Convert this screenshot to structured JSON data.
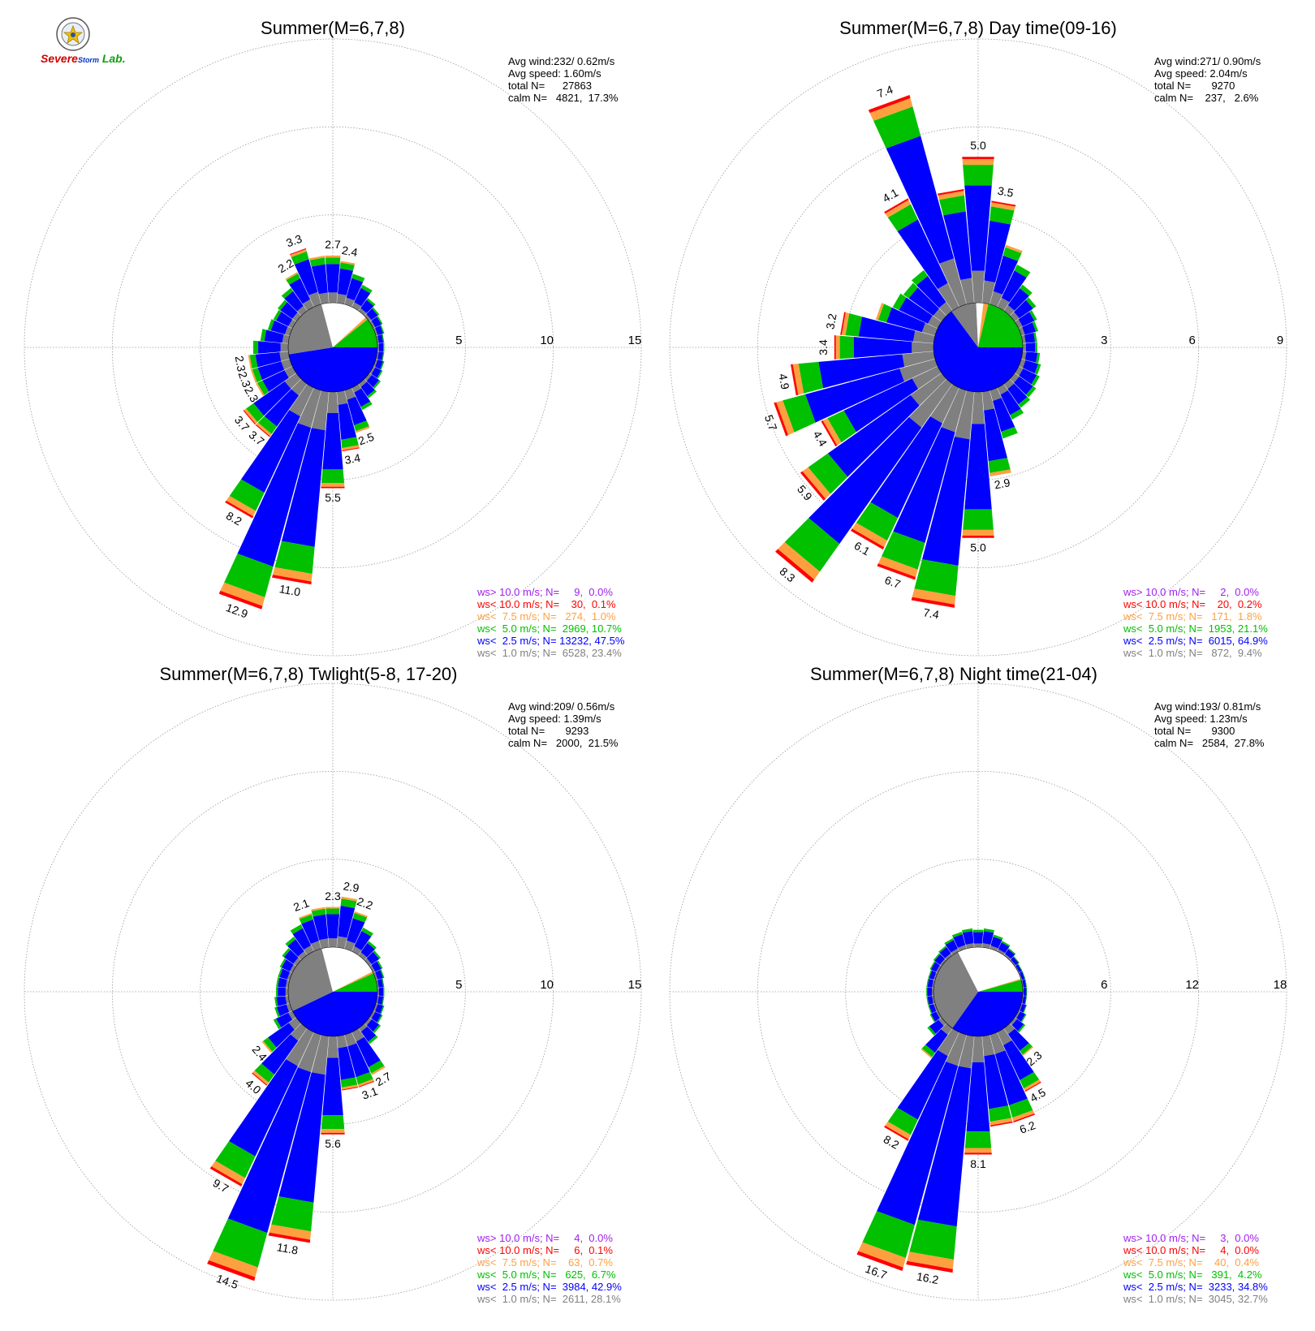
{
  "logo": {
    "part1": "Severe",
    "part2": "Storm",
    "part3": "Lab."
  },
  "colors": {
    "gt10": "#a020f0",
    "lt10": "#ff0000",
    "lt75": "#ffa040",
    "lt5": "#00c000",
    "lt25": "#0000ff",
    "lt1": "#808080",
    "calm_fill": "#ffffff",
    "grid": "#999999"
  },
  "chart_data": [
    {
      "type": "polar-bar",
      "title": "Summer(M=6,7,8)",
      "rings": [
        5,
        10,
        15
      ],
      "rmax": 15,
      "stats": [
        "Avg wind:232/ 0.62m/s",
        "Avg speed: 1.60m/s",
        "total N=      27863",
        "calm N=   4821,  17.3%"
      ],
      "legend": [
        {
          "label": "ws> 10.0 m/s; N=     9,  0.0%",
          "cls": "gt10"
        },
        {
          "label": "ws< 10.0 m/s; N=    30,  0.1%",
          "cls": "lt10"
        },
        {
          "label": "ws<  7.5 m/s; N=   274,  1.0%",
          "cls": "lt75"
        },
        {
          "label": "ws<  5.0 m/s; N=  2969, 10.7%",
          "cls": "lt5"
        },
        {
          "label": "ws<  2.5 m/s; N= 13232, 47.5%",
          "cls": "lt25"
        },
        {
          "label": "ws<  1.0 m/s; N=  6528, 23.4%",
          "cls": "lt1"
        }
      ],
      "pie": [
        {
          "cls": "lt25",
          "percent": 47.5
        },
        {
          "cls": "lt1",
          "percent": 23.4
        },
        {
          "cls": "calm_fill",
          "percent": 17.3
        },
        {
          "cls": "lt75",
          "percent": 1.0
        },
        {
          "cls": "lt5",
          "percent": 10.8
        }
      ],
      "bars": [
        {
          "dir": 0,
          "total": 2.7,
          "label": "2.7"
        },
        {
          "dir": 10,
          "total": 2.4,
          "label": "2.4"
        },
        {
          "dir": 20,
          "total": 1.8
        },
        {
          "dir": 30,
          "total": 1.4
        },
        {
          "dir": 40,
          "total": 0.9
        },
        {
          "dir": 50,
          "total": 0.7
        },
        {
          "dir": 60,
          "total": 0.6
        },
        {
          "dir": 70,
          "total": 0.5
        },
        {
          "dir": 80,
          "total": 0.4
        },
        {
          "dir": 90,
          "total": 0.4
        },
        {
          "dir": 100,
          "total": 0.4
        },
        {
          "dir": 110,
          "total": 0.5
        },
        {
          "dir": 120,
          "total": 0.6
        },
        {
          "dir": 130,
          "total": 0.8
        },
        {
          "dir": 140,
          "total": 1.0
        },
        {
          "dir": 150,
          "total": 1.4
        },
        {
          "dir": 160,
          "total": 2.5,
          "label": "2.5"
        },
        {
          "dir": 170,
          "total": 3.4,
          "label": "3.4"
        },
        {
          "dir": 180,
          "total": 5.5,
          "label": "5.5"
        },
        {
          "dir": 190,
          "total": 11.0,
          "label": "11.0"
        },
        {
          "dir": 200,
          "total": 12.9,
          "label": "12.9"
        },
        {
          "dir": 210,
          "total": 8.2,
          "label": "8.2"
        },
        {
          "dir": 220,
          "total": 3.7,
          "label": "3.7"
        },
        {
          "dir": 230,
          "total": 3.7,
          "label": "3.7"
        },
        {
          "dir": 240,
          "total": 2.3,
          "label": "2.3"
        },
        {
          "dir": 250,
          "total": 2.3,
          "label": "2.3"
        },
        {
          "dir": 260,
          "total": 2.3,
          "label": "2.3"
        },
        {
          "dir": 270,
          "total": 2.0
        },
        {
          "dir": 280,
          "total": 1.6
        },
        {
          "dir": 290,
          "total": 1.3
        },
        {
          "dir": 300,
          "total": 1.2
        },
        {
          "dir": 310,
          "total": 1.3
        },
        {
          "dir": 320,
          "total": 1.6
        },
        {
          "dir": 330,
          "total": 2.2,
          "label": "2.2"
        },
        {
          "dir": 340,
          "total": 3.3,
          "label": "3.3"
        },
        {
          "dir": 350,
          "total": 2.7
        }
      ]
    },
    {
      "type": "polar-bar",
      "title": "Summer(M=6,7,8) Day time(09-16)",
      "rings": [
        3,
        6,
        9
      ],
      "rmax": 9,
      "stats": [
        "Avg wind:271/ 0.90m/s",
        "Avg speed: 2.04m/s",
        "total N=       9270",
        "calm N=    237,   2.6%"
      ],
      "legend": [
        {
          "label": "ws> 10.0 m/s; N=     2,  0.0%",
          "cls": "gt10"
        },
        {
          "label": "ws< 10.0 m/s; N=    20,  0.2%",
          "cls": "lt10"
        },
        {
          "label": "ws<  7.5 m/s; N=   171,  1.8%",
          "cls": "lt75"
        },
        {
          "label": "ws<  5.0 m/s; N=  1953, 21.1%",
          "cls": "lt5"
        },
        {
          "label": "ws<  2.5 m/s; N=  6015, 64.9%",
          "cls": "lt25"
        },
        {
          "label": "ws<  1.0 m/s; N=   872,  9.4%",
          "cls": "lt1"
        }
      ],
      "pie": [
        {
          "cls": "lt25",
          "percent": 64.9
        },
        {
          "cls": "lt1",
          "percent": 9.4
        },
        {
          "cls": "calm_fill",
          "percent": 2.6
        },
        {
          "cls": "lt75",
          "percent": 1.8
        },
        {
          "cls": "lt5",
          "percent": 21.3
        }
      ],
      "bars": [
        {
          "dir": 0,
          "total": 5.0,
          "label": "5.0"
        },
        {
          "dir": 10,
          "total": 3.5,
          "label": "3.5"
        },
        {
          "dir": 20,
          "total": 2.1
        },
        {
          "dir": 30,
          "total": 1.6
        },
        {
          "dir": 40,
          "total": 1.1
        },
        {
          "dir": 50,
          "total": 0.9
        },
        {
          "dir": 60,
          "total": 0.7
        },
        {
          "dir": 70,
          "total": 0.6
        },
        {
          "dir": 80,
          "total": 0.5
        },
        {
          "dir": 90,
          "total": 0.5
        },
        {
          "dir": 100,
          "total": 0.6
        },
        {
          "dir": 110,
          "total": 0.7
        },
        {
          "dir": 120,
          "total": 0.8
        },
        {
          "dir": 130,
          "total": 0.9
        },
        {
          "dir": 140,
          "total": 1.0
        },
        {
          "dir": 150,
          "total": 1.2
        },
        {
          "dir": 160,
          "total": 1.7
        },
        {
          "dir": 170,
          "total": 2.9,
          "label": "2.9"
        },
        {
          "dir": 180,
          "total": 5.0,
          "label": "5.0"
        },
        {
          "dir": 190,
          "total": 7.4,
          "label": "7.4"
        },
        {
          "dir": 200,
          "total": 6.7,
          "label": "6.7"
        },
        {
          "dir": 210,
          "total": 6.1,
          "label": "6.1"
        },
        {
          "dir": 220,
          "total": 8.3,
          "label": "8.3"
        },
        {
          "dir": 230,
          "total": 5.9,
          "label": "5.9"
        },
        {
          "dir": 240,
          "total": 4.4,
          "label": "4.4"
        },
        {
          "dir": 250,
          "total": 5.7,
          "label": "5.7"
        },
        {
          "dir": 260,
          "total": 4.9,
          "label": "4.9"
        },
        {
          "dir": 270,
          "total": 3.4,
          "label": "3.4"
        },
        {
          "dir": 280,
          "total": 3.2,
          "label": "3.2"
        },
        {
          "dir": 290,
          "total": 2.1
        },
        {
          "dir": 300,
          "total": 1.7
        },
        {
          "dir": 310,
          "total": 1.6
        },
        {
          "dir": 320,
          "total": 1.7
        },
        {
          "dir": 330,
          "total": 4.1,
          "label": "4.1"
        },
        {
          "dir": 340,
          "total": 7.4,
          "label": "7.4"
        },
        {
          "dir": 350,
          "total": 3.9
        }
      ]
    },
    {
      "type": "polar-bar",
      "title": "Summer(M=6,7,8) Twlight(5-8, 17-20)",
      "rings": [
        5,
        10,
        15
      ],
      "rmax": 15,
      "stats": [
        "Avg wind:209/ 0.56m/s",
        "Avg speed: 1.39m/s",
        "total N=       9293",
        "calm N=   2000,  21.5%"
      ],
      "legend": [
        {
          "label": "ws> 10.0 m/s; N=     4,  0.0%",
          "cls": "gt10"
        },
        {
          "label": "ws< 10.0 m/s; N=     6,  0.1%",
          "cls": "lt10"
        },
        {
          "label": "ws<  7.5 m/s; N=    63,  0.7%",
          "cls": "lt75"
        },
        {
          "label": "ws<  5.0 m/s; N=   625,  6.7%",
          "cls": "lt5"
        },
        {
          "label": "ws<  2.5 m/s; N=  3984, 42.9%",
          "cls": "lt25"
        },
        {
          "label": "ws<  1.0 m/s; N=  2611, 28.1%",
          "cls": "lt1"
        }
      ],
      "pie": [
        {
          "cls": "lt25",
          "percent": 42.9
        },
        {
          "cls": "lt1",
          "percent": 28.1
        },
        {
          "cls": "calm_fill",
          "percent": 21.5
        },
        {
          "cls": "lt75",
          "percent": 0.7
        },
        {
          "cls": "lt5",
          "percent": 6.8
        }
      ],
      "bars": [
        {
          "dir": 0,
          "total": 2.3,
          "label": "2.3"
        },
        {
          "dir": 10,
          "total": 2.9,
          "label": "2.9"
        },
        {
          "dir": 20,
          "total": 2.2,
          "label": "2.2"
        },
        {
          "dir": 30,
          "total": 1.5
        },
        {
          "dir": 40,
          "total": 1.0
        },
        {
          "dir": 50,
          "total": 0.8
        },
        {
          "dir": 60,
          "total": 0.6
        },
        {
          "dir": 70,
          "total": 0.5
        },
        {
          "dir": 80,
          "total": 0.4
        },
        {
          "dir": 90,
          "total": 0.4
        },
        {
          "dir": 100,
          "total": 0.4
        },
        {
          "dir": 110,
          "total": 0.5
        },
        {
          "dir": 120,
          "total": 0.6
        },
        {
          "dir": 130,
          "total": 0.8
        },
        {
          "dir": 140,
          "total": 1.1
        },
        {
          "dir": 150,
          "total": 2.7,
          "label": "2.7"
        },
        {
          "dir": 160,
          "total": 3.1,
          "label": "3.1"
        },
        {
          "dir": 170,
          "total": 3.1
        },
        {
          "dir": 180,
          "total": 5.6,
          "label": "5.6"
        },
        {
          "dir": 190,
          "total": 11.8,
          "label": "11.8"
        },
        {
          "dir": 200,
          "total": 14.5,
          "label": "14.5"
        },
        {
          "dir": 210,
          "total": 9.7,
          "label": "9.7"
        },
        {
          "dir": 220,
          "total": 4.0,
          "label": "4.0"
        },
        {
          "dir": 230,
          "total": 2.4,
          "label": "2.4"
        },
        {
          "dir": 240,
          "total": 1.2
        },
        {
          "dir": 250,
          "total": 0.9
        },
        {
          "dir": 260,
          "total": 0.8
        },
        {
          "dir": 270,
          "total": 0.7
        },
        {
          "dir": 280,
          "total": 0.7
        },
        {
          "dir": 290,
          "total": 0.7
        },
        {
          "dir": 300,
          "total": 0.8
        },
        {
          "dir": 310,
          "total": 1.0
        },
        {
          "dir": 320,
          "total": 1.3
        },
        {
          "dir": 330,
          "total": 1.7
        },
        {
          "dir": 340,
          "total": 2.1,
          "label": "2.1"
        },
        {
          "dir": 350,
          "total": 2.3
        }
      ]
    },
    {
      "type": "polar-bar",
      "title": "Summer(M=6,7,8) Night time(21-04)",
      "rings": [
        6,
        12,
        18
      ],
      "rmax": 18,
      "stats": [
        "Avg wind:193/ 0.81m/s",
        "Avg speed: 1.23m/s",
        "total N=       9300",
        "calm N=   2584,  27.8%"
      ],
      "legend": [
        {
          "label": "ws> 10.0 m/s; N=     3,  0.0%",
          "cls": "gt10"
        },
        {
          "label": "ws< 10.0 m/s; N=     4,  0.0%",
          "cls": "lt10"
        },
        {
          "label": "ws<  7.5 m/s; N=    40,  0.4%",
          "cls": "lt75"
        },
        {
          "label": "ws<  5.0 m/s; N=   391,  4.2%",
          "cls": "lt5"
        },
        {
          "label": "ws<  2.5 m/s; N=  3233, 34.8%",
          "cls": "lt25"
        },
        {
          "label": "ws<  1.0 m/s; N=  3045, 32.7%",
          "cls": "lt1"
        }
      ],
      "pie": [
        {
          "cls": "lt25",
          "percent": 34.8
        },
        {
          "cls": "lt1",
          "percent": 32.7
        },
        {
          "cls": "calm_fill",
          "percent": 27.8
        },
        {
          "cls": "lt75",
          "percent": 0.4
        },
        {
          "cls": "lt5",
          "percent": 4.3
        }
      ],
      "bars": [
        {
          "dir": 0,
          "total": 1.2
        },
        {
          "dir": 10,
          "total": 1.3
        },
        {
          "dir": 20,
          "total": 1.0
        },
        {
          "dir": 30,
          "total": 0.8
        },
        {
          "dir": 40,
          "total": 0.6
        },
        {
          "dir": 50,
          "total": 0.4
        },
        {
          "dir": 60,
          "total": 0.3
        },
        {
          "dir": 70,
          "total": 0.3
        },
        {
          "dir": 80,
          "total": 0.3
        },
        {
          "dir": 90,
          "total": 0.3
        },
        {
          "dir": 100,
          "total": 0.3
        },
        {
          "dir": 110,
          "total": 0.4
        },
        {
          "dir": 120,
          "total": 0.6
        },
        {
          "dir": 130,
          "total": 0.9
        },
        {
          "dir": 140,
          "total": 2.3,
          "label": "2.3"
        },
        {
          "dir": 150,
          "total": 4.5,
          "label": "4.5"
        },
        {
          "dir": 160,
          "total": 6.2,
          "label": "6.2"
        },
        {
          "dir": 170,
          "total": 6.2
        },
        {
          "dir": 180,
          "total": 8.1,
          "label": "8.1"
        },
        {
          "dir": 190,
          "total": 16.2,
          "label": "16.2"
        },
        {
          "dir": 200,
          "total": 16.7,
          "label": "16.7"
        },
        {
          "dir": 210,
          "total": 8.2,
          "label": "8.2"
        },
        {
          "dir": 220,
          "total": 2.5
        },
        {
          "dir": 230,
          "total": 1.2
        },
        {
          "dir": 240,
          "total": 0.6
        },
        {
          "dir": 250,
          "total": 0.5
        },
        {
          "dir": 260,
          "total": 0.5
        },
        {
          "dir": 270,
          "total": 0.5
        },
        {
          "dir": 280,
          "total": 0.5
        },
        {
          "dir": 290,
          "total": 0.5
        },
        {
          "dir": 300,
          "total": 0.6
        },
        {
          "dir": 310,
          "total": 0.7
        },
        {
          "dir": 320,
          "total": 0.8
        },
        {
          "dir": 330,
          "total": 1.0
        },
        {
          "dir": 340,
          "total": 1.2
        },
        {
          "dir": 350,
          "total": 1.3
        }
      ]
    }
  ]
}
